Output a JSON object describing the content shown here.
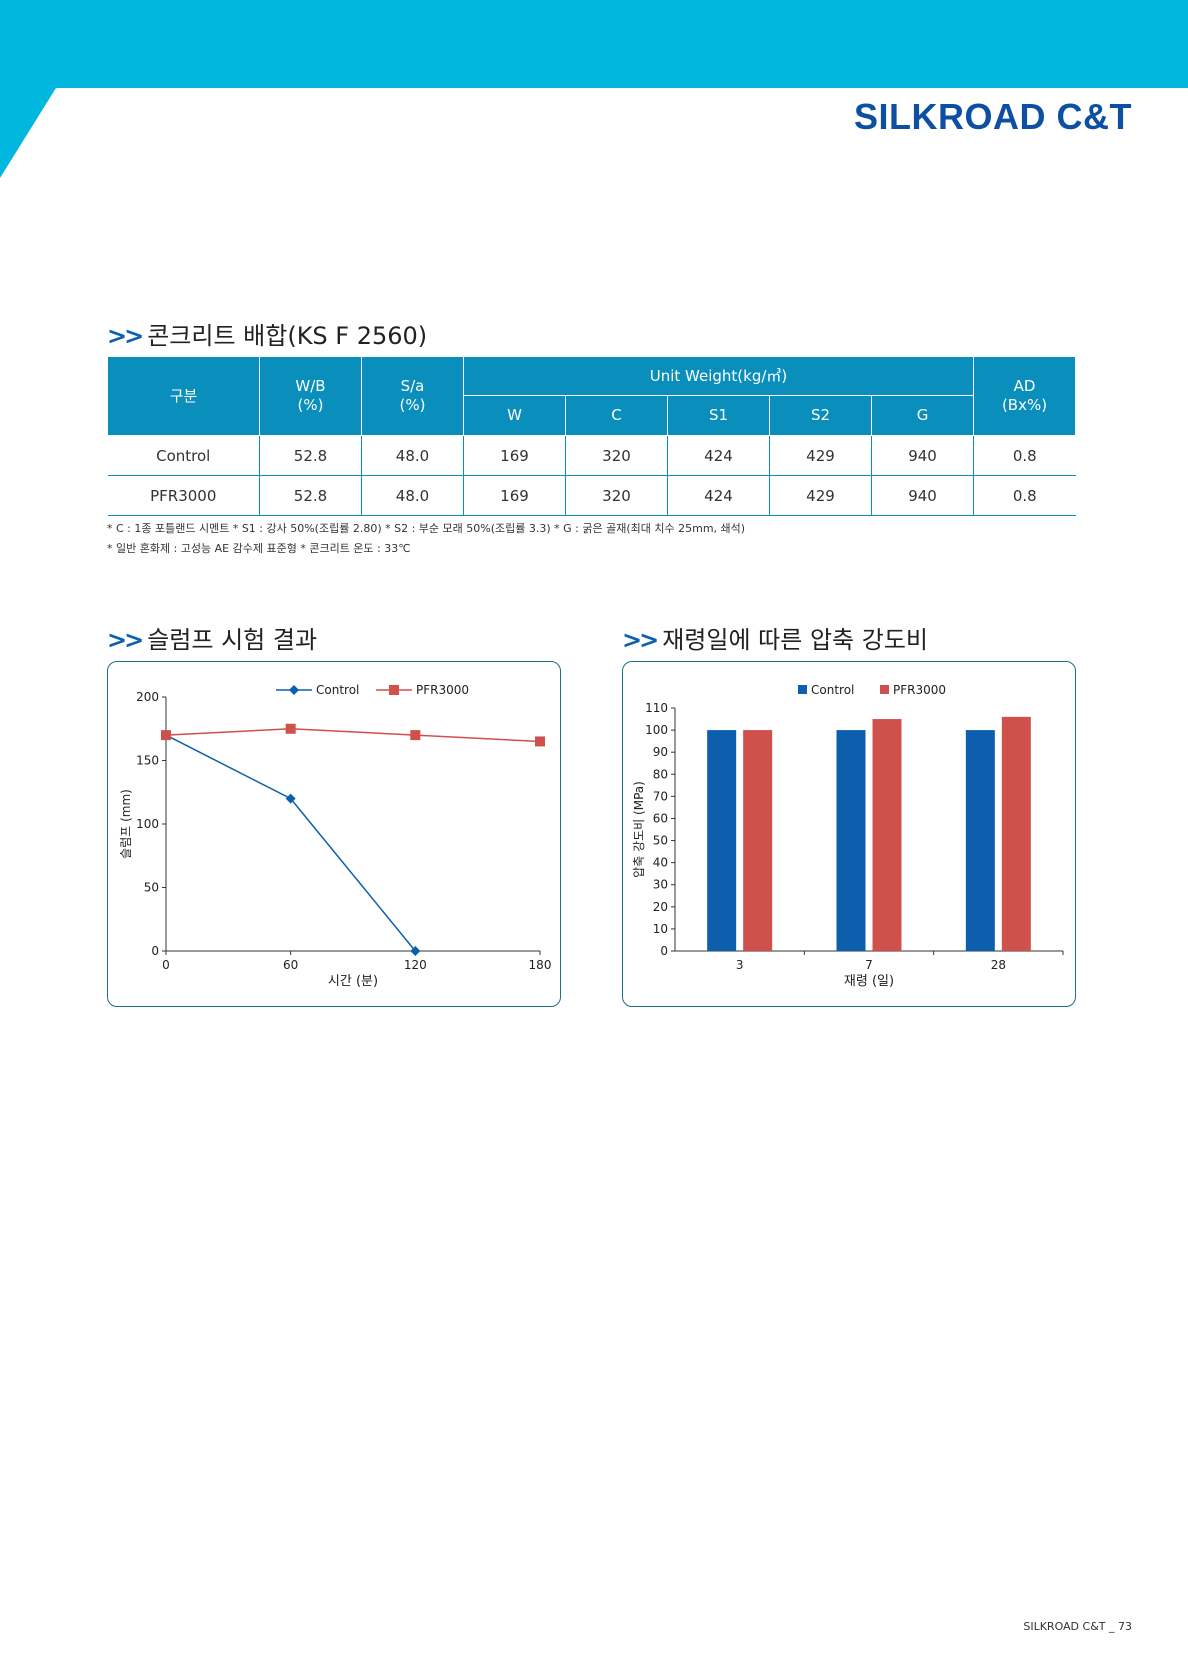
{
  "header": {
    "brand": "SILKROAD C&T",
    "colors": {
      "band": "#00b7de",
      "brand_text": "#0d4fa3",
      "table_header": "#0a8fbd"
    }
  },
  "section_chevron": ">>",
  "mix_section": {
    "title": "콘크리트 배합(KS F 2560)",
    "table": {
      "headers": {
        "category": "구분",
        "wb": "W/B\n(%)",
        "sa": "S/a\n(%)",
        "unit_weight": "Unit Weight(kg/㎥)",
        "ad": "AD\n(Bx%)",
        "sub": [
          "W",
          "C",
          "S1",
          "S2",
          "G"
        ]
      },
      "rows": [
        [
          "Control",
          "52.8",
          "48.0",
          "169",
          "320",
          "424",
          "429",
          "940",
          "0.8"
        ],
        [
          "PFR3000",
          "52.8",
          "48.0",
          "169",
          "320",
          "424",
          "429",
          "940",
          "0.8"
        ]
      ]
    },
    "notes": [
      "* C : 1종 포틀랜드 시멘트   * S1 : 강사 50%(조립률 2.80)   * S2 : 부순 모래 50%(조립률 3.3)   * G : 굵은 골재(최대 치수 25mm, 쇄석)",
      "* 일반 혼화제 : 고성능 AE 감수제 표준형   * 콘크리트 온도 : 33℃"
    ]
  },
  "slump_section": {
    "title": "슬럼프 시험 결과"
  },
  "strength_section": {
    "title": "재령일에 따른 압축 강도비"
  },
  "chart_data": [
    {
      "type": "line",
      "x": [
        0,
        60,
        120,
        180
      ],
      "xlabel": "시간 (분)",
      "ylabel": "슬럼프 (mm)",
      "xlim": [
        0,
        180
      ],
      "ylim": [
        0,
        200
      ],
      "xticks": [
        0,
        60,
        120,
        180
      ],
      "yticks": [
        0,
        50,
        100,
        150,
        200
      ],
      "grid": false,
      "legend": "top-center",
      "series": [
        {
          "name": "Control",
          "values": [
            170,
            120,
            0,
            null
          ],
          "color": "#0d5fae",
          "marker": "diamond"
        },
        {
          "name": "PFR3000",
          "values": [
            170,
            175,
            170,
            165
          ],
          "color": "#d0504b",
          "marker": "square"
        }
      ]
    },
    {
      "type": "bar",
      "categories": [
        "3",
        "7",
        "28"
      ],
      "xlabel": "재령 (일)",
      "ylabel": "압축 강도비 (MPa)",
      "ylim": [
        0,
        110
      ],
      "yticks": [
        0,
        10,
        20,
        30,
        40,
        50,
        60,
        70,
        80,
        90,
        100,
        110
      ],
      "grid": false,
      "legend": "top-center",
      "series": [
        {
          "name": "Control",
          "values": [
            100,
            100,
            100
          ],
          "color": "#0d5fae"
        },
        {
          "name": "PFR3000",
          "values": [
            100,
            105,
            106
          ],
          "color": "#d0504b"
        }
      ]
    }
  ],
  "footer": {
    "text": "SILKROAD C&T _ 73"
  }
}
